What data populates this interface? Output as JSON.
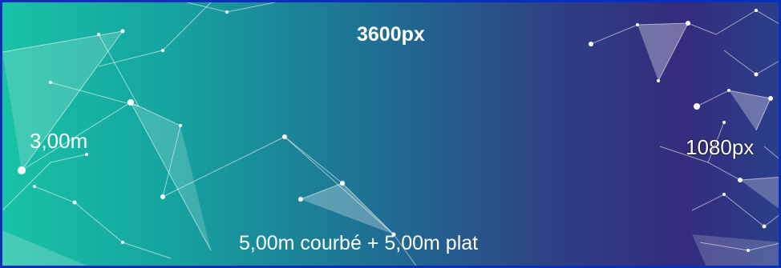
{
  "labels": {
    "width_px": "3600px",
    "diameter": "3,00m",
    "height_px": "1080px",
    "bottom_text": "5,00m courbé  +  5,00m plat"
  },
  "colors": {
    "gradient_left": "#18c2a6",
    "gradient_mid": "#1f6f93",
    "gradient_right": "#342c7d",
    "border": "#0a2fb8",
    "text": "#ffffff"
  },
  "background": {
    "style": "network-lines-and-nodes-pattern"
  }
}
